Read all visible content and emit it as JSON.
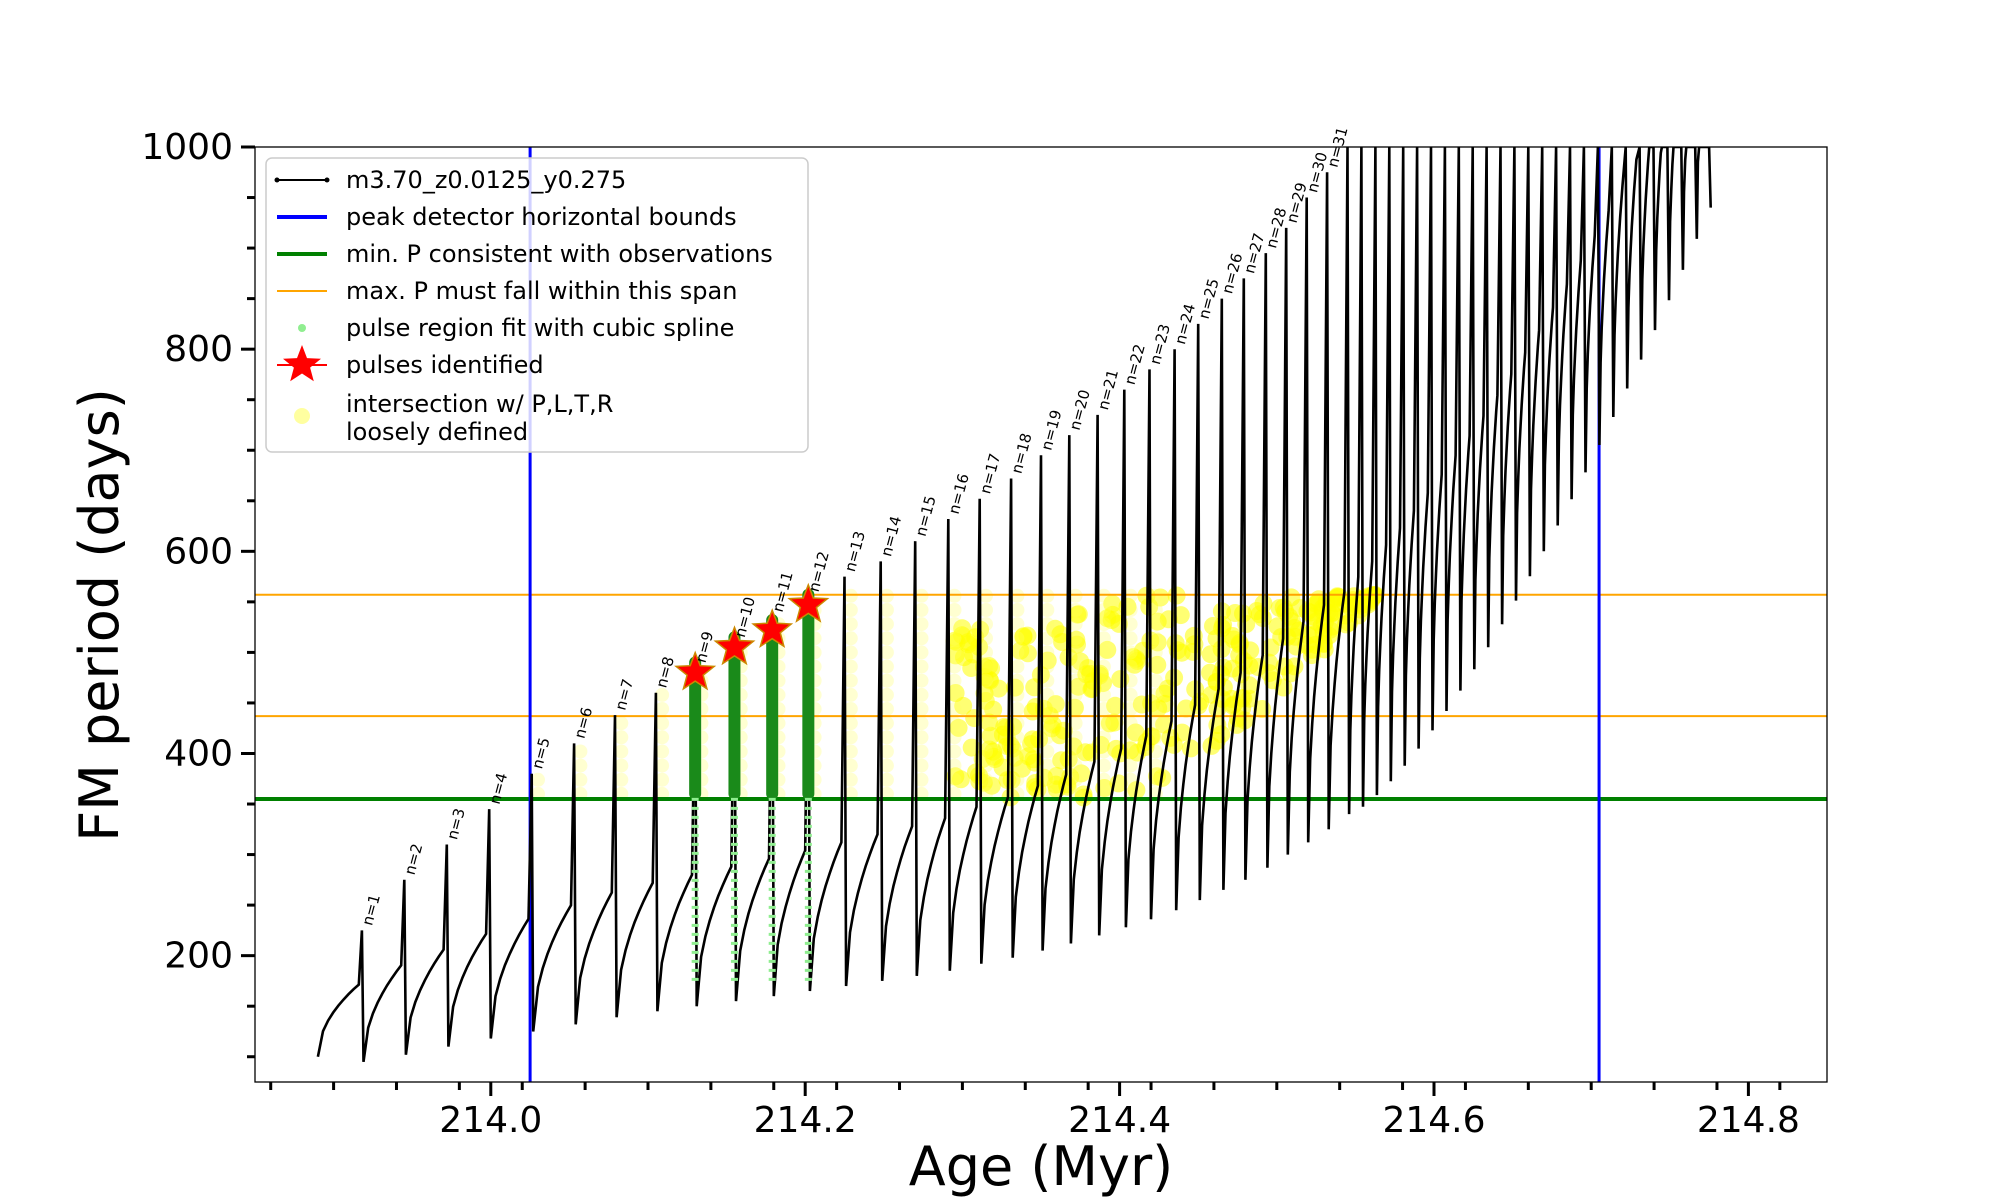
{
  "chart_data": {
    "type": "line",
    "title": "",
    "xlabel": "Age (Myr)",
    "ylabel": "FM period (days)",
    "xlim": [
      213.85,
      214.85
    ],
    "ylim": [
      75,
      1000
    ],
    "x_ticks": [
      214.0,
      214.2,
      214.4,
      214.6,
      214.8
    ],
    "x_tick_labels": [
      "214.0",
      "214.2",
      "214.4",
      "214.6",
      "214.8"
    ],
    "y_ticks": [
      200,
      400,
      600,
      800,
      1000
    ],
    "y_tick_labels": [
      "200",
      "400",
      "600",
      "800",
      "1000"
    ],
    "grid": false,
    "legend_position": "top-left",
    "legend": [
      {
        "label": "m3.70_z0.0125_y0.275",
        "color": "#000000",
        "kind": "line-marker"
      },
      {
        "label": "peak detector horizontal bounds",
        "color": "#0000ff",
        "kind": "line"
      },
      {
        "label": "min. P consistent with observations",
        "color": "#008000",
        "kind": "line"
      },
      {
        "label": "max. P must fall within this span",
        "color": "#ffa500",
        "kind": "thin-line"
      },
      {
        "label": "pulse region fit with cubic spline",
        "color": "#90ee90",
        "kind": "dot"
      },
      {
        "label": "pulses identified",
        "color": "#ff0000",
        "kind": "star"
      },
      {
        "label": "intersection w/ P,L,T,R\nloosely defined",
        "color": "#ffff80",
        "kind": "circle"
      }
    ],
    "vertical_lines": [
      {
        "x": 214.025,
        "color": "#0000ff"
      },
      {
        "x": 214.705,
        "color": "#0000ff"
      }
    ],
    "horizontal_lines": [
      {
        "y": 355,
        "color": "#008000"
      },
      {
        "y": 437,
        "color": "#ffa500"
      },
      {
        "y": 557,
        "color": "#ffa500"
      }
    ],
    "pulses": [
      {
        "n": 1,
        "age": 213.918,
        "peak": 225,
        "base": 95
      },
      {
        "n": 2,
        "age": 213.945,
        "peak": 275,
        "base": 102
      },
      {
        "n": 3,
        "age": 213.972,
        "peak": 310,
        "base": 110
      },
      {
        "n": 4,
        "age": 213.999,
        "peak": 345,
        "base": 118
      },
      {
        "n": 5,
        "age": 214.026,
        "peak": 380,
        "base": 125
      },
      {
        "n": 6,
        "age": 214.053,
        "peak": 410,
        "base": 132
      },
      {
        "n": 7,
        "age": 214.079,
        "peak": 438,
        "base": 139
      },
      {
        "n": 8,
        "age": 214.105,
        "peak": 460,
        "base": 145
      },
      {
        "n": 9,
        "age": 214.13,
        "peak": 485,
        "base": 150
      },
      {
        "n": 10,
        "age": 214.155,
        "peak": 510,
        "base": 155
      },
      {
        "n": 11,
        "age": 214.179,
        "peak": 535,
        "base": 160
      },
      {
        "n": 12,
        "age": 214.202,
        "peak": 555,
        "base": 165
      },
      {
        "n": 13,
        "age": 214.225,
        "peak": 575,
        "base": 170
      },
      {
        "n": 14,
        "age": 214.248,
        "peak": 590,
        "base": 175
      },
      {
        "n": 15,
        "age": 214.27,
        "peak": 610,
        "base": 180
      },
      {
        "n": 16,
        "age": 214.291,
        "peak": 632,
        "base": 185
      },
      {
        "n": 17,
        "age": 214.311,
        "peak": 652,
        "base": 192
      },
      {
        "n": 18,
        "age": 214.331,
        "peak": 672,
        "base": 198
      },
      {
        "n": 19,
        "age": 214.35,
        "peak": 695,
        "base": 205
      },
      {
        "n": 20,
        "age": 214.368,
        "peak": 715,
        "base": 212
      },
      {
        "n": 21,
        "age": 214.386,
        "peak": 735,
        "base": 220
      },
      {
        "n": 22,
        "age": 214.403,
        "peak": 760,
        "base": 228
      },
      {
        "n": 23,
        "age": 214.419,
        "peak": 780,
        "base": 236
      },
      {
        "n": 24,
        "age": 214.435,
        "peak": 800,
        "base": 245
      },
      {
        "n": 25,
        "age": 214.45,
        "peak": 825,
        "base": 255
      },
      {
        "n": 26,
        "age": 214.465,
        "peak": 850,
        "base": 265
      },
      {
        "n": 27,
        "age": 214.479,
        "peak": 870,
        "base": 275
      },
      {
        "n": 28,
        "age": 214.493,
        "peak": 895,
        "base": 287
      },
      {
        "n": 29,
        "age": 214.506,
        "peak": 920,
        "base": 300
      },
      {
        "n": 30,
        "age": 214.519,
        "peak": 950,
        "base": 312
      },
      {
        "n": 31,
        "age": 214.532,
        "peak": 975,
        "base": 325
      }
    ],
    "pulse_labels": [
      "n=1",
      "n=2",
      "n=3",
      "n=4",
      "n=5",
      "n=6",
      "n=7",
      "n=8",
      "n=9",
      "n=10",
      "n=11",
      "n=12",
      "n=13",
      "n=14",
      "n=15",
      "n=16",
      "n=17",
      "n=18",
      "n=19",
      "n=20",
      "n=21",
      "n=22",
      "n=23",
      "n=24",
      "n=25",
      "n=26",
      "n=27",
      "n=28",
      "n=29",
      "n=30",
      "n=31"
    ],
    "late_pulse_ages_start": 214.545,
    "late_pulse_ages_end": 214.775,
    "identified_pulses": [
      {
        "n": 9,
        "age": 214.13,
        "period": 480
      },
      {
        "n": 10,
        "age": 214.155,
        "period": 505
      },
      {
        "n": 11,
        "age": 214.179,
        "period": 522
      },
      {
        "n": 12,
        "age": 214.202,
        "period": 547
      }
    ]
  }
}
